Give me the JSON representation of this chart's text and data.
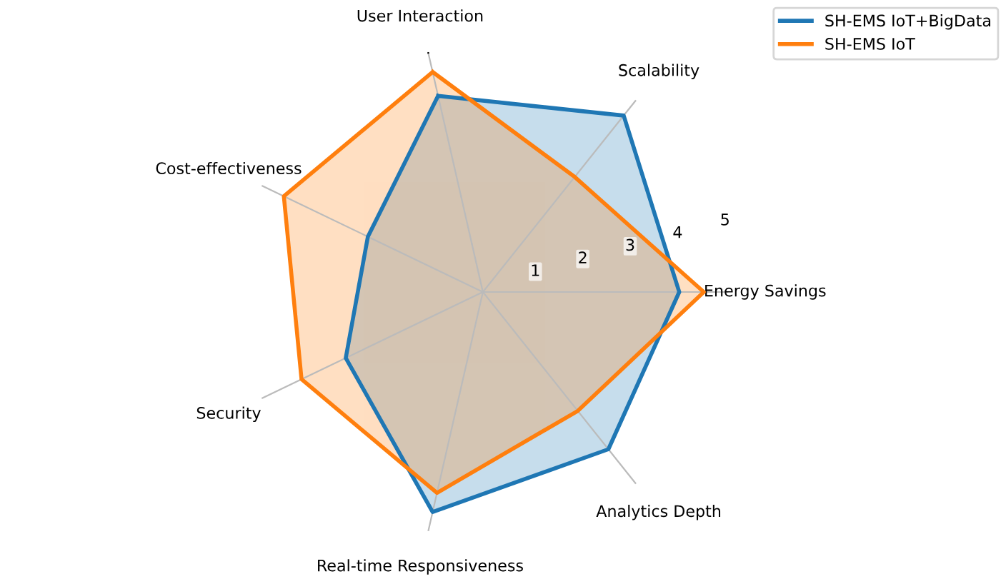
{
  "chart_data": {
    "type": "radar",
    "categories": [
      "User Interaction",
      "Scalability",
      "Energy Savings",
      "Analytics Depth",
      "Real-time Responsiveness",
      "Security",
      "Cost-effectiveness"
    ],
    "series": [
      {
        "name": "SH-EMS IoT+BigData",
        "color": "#1f77b4",
        "values": [
          4.1,
          4.6,
          4.0,
          4.1,
          4.6,
          3.1,
          2.6
        ]
      },
      {
        "name": "SH-EMS IoT",
        "color": "#ff7f0e",
        "values": [
          4.6,
          3.0,
          4.5,
          3.1,
          4.2,
          4.1,
          4.5
        ]
      }
    ],
    "ylim": [
      0,
      5
    ],
    "yticks": [
      1,
      2,
      3,
      4,
      5
    ],
    "grid": true,
    "legend": "top right"
  }
}
